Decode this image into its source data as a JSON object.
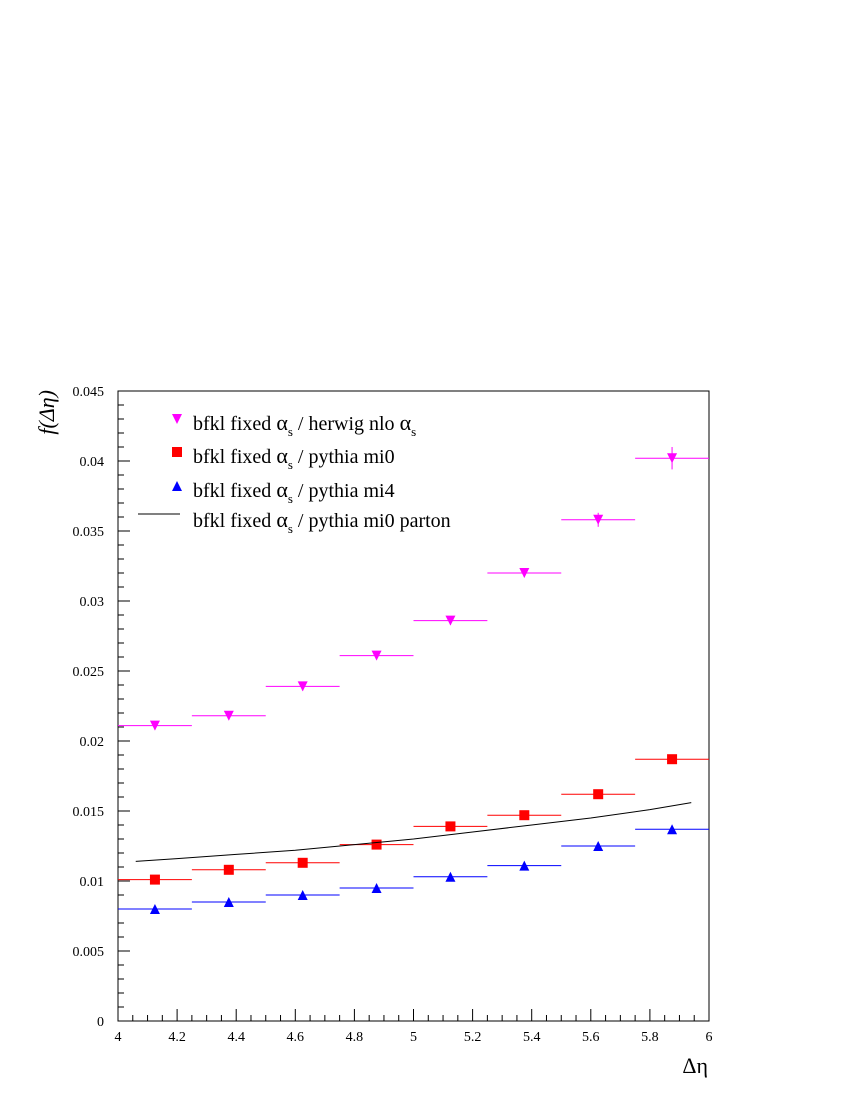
{
  "chart_data": {
    "type": "scatter",
    "xlabel": "Δη",
    "ylabel": "f(Δη)",
    "xlim": [
      4,
      6
    ],
    "ylim": [
      0,
      0.045
    ],
    "x_ticks": [
      "4",
      "4.2",
      "4.4",
      "4.6",
      "4.8",
      "5",
      "5.2",
      "5.4",
      "5.6",
      "5.8",
      "6"
    ],
    "y_ticks": [
      "0",
      "0.005",
      "0.01",
      "0.015",
      "0.02",
      "0.025",
      "0.03",
      "0.035",
      "0.04",
      "0.045"
    ],
    "legend_position": "top-left",
    "bin_half_width": 0.125,
    "series": [
      {
        "name": "bfkl fixed α_s / herwig nlo α_s",
        "legend_parts": [
          "bfkl fixed ",
          "α",
          "s",
          " / herwig nlo ",
          "α",
          "s"
        ],
        "marker": "triangle-down",
        "color": "#ff00ff",
        "x": [
          4.125,
          4.375,
          4.625,
          4.875,
          5.125,
          5.375,
          5.625,
          5.875
        ],
        "y": [
          0.0211,
          0.0218,
          0.0239,
          0.0261,
          0.0286,
          0.032,
          0.0358,
          0.0402
        ],
        "y_err": [
          0.0003,
          0.0002,
          0.0003,
          0.0002,
          0.0003,
          0.0003,
          0.0005,
          0.0008
        ]
      },
      {
        "name": "bfkl fixed α_s / pythia mi0",
        "legend_parts": [
          "bfkl fixed ",
          "α",
          "s",
          " / pythia mi0",
          "",
          ""
        ],
        "marker": "square",
        "color": "#ff0000",
        "x": [
          4.125,
          4.375,
          4.625,
          4.875,
          5.125,
          5.375,
          5.625,
          5.875
        ],
        "y": [
          0.0101,
          0.0108,
          0.0113,
          0.0126,
          0.0139,
          0.0147,
          0.0162,
          0.0187
        ],
        "y_err": [
          0.0001,
          0.0001,
          0.0001,
          0.0001,
          0.0001,
          0.0001,
          0.0001,
          0.0001
        ]
      },
      {
        "name": "bfkl fixed α_s / pythia mi4",
        "legend_parts": [
          "bfkl fixed ",
          "α",
          "s",
          " / pythia mi4",
          "",
          ""
        ],
        "marker": "triangle-up",
        "color": "#0000ff",
        "x": [
          4.125,
          4.375,
          4.625,
          4.875,
          5.125,
          5.375,
          5.625,
          5.875
        ],
        "y": [
          0.008,
          0.0085,
          0.009,
          0.0095,
          0.0103,
          0.0111,
          0.0125,
          0.0137
        ],
        "y_err": [
          0.0001,
          0.0001,
          0.0001,
          0.0001,
          0.0001,
          0.0001,
          0.0001,
          0.0001
        ]
      },
      {
        "name": "bfkl fixed α_s / pythia mi0 parton",
        "legend_parts": [
          "bfkl fixed ",
          "α",
          "s",
          " / pythia mi0 parton",
          "",
          ""
        ],
        "marker": "line",
        "color": "#000000",
        "x": [
          4.06,
          4.2,
          4.4,
          4.6,
          4.8,
          5.0,
          5.2,
          5.4,
          5.6,
          5.8,
          5.94
        ],
        "y": [
          0.0114,
          0.0116,
          0.0119,
          0.0122,
          0.0126,
          0.013,
          0.0135,
          0.014,
          0.0145,
          0.0151,
          0.0156
        ]
      }
    ]
  }
}
